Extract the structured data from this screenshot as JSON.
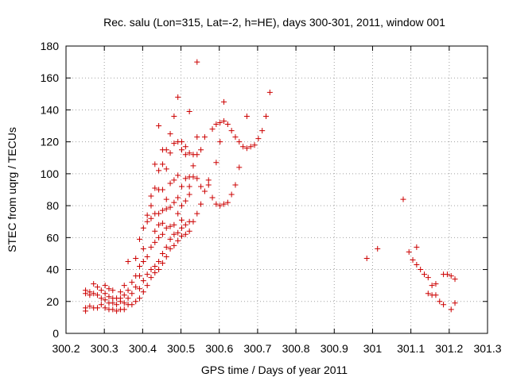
{
  "chart_data": {
    "type": "scatter",
    "title": "Rec. salu (Lon=315, Lat=-2, h=HE), days 300-301, 2011, window 001",
    "xlabel": "GPS time / Days of year 2011",
    "ylabel": "STEC from uqrg / TECUs",
    "xlim": [
      300.2,
      301.3
    ],
    "ylim": [
      0,
      180
    ],
    "xticks": [
      "300.2",
      "300.3",
      "300.4",
      "300.5",
      "300.6",
      "300.7",
      "300.8",
      "300.9",
      "301",
      "301.1",
      "301.2",
      "301.3"
    ],
    "yticks": [
      "0",
      "20",
      "40",
      "60",
      "80",
      "100",
      "120",
      "140",
      "160",
      "180"
    ],
    "grid": true,
    "marker": "+",
    "color": "#cc0000",
    "points": [
      [
        300.251,
        14
      ],
      [
        300.251,
        16
      ],
      [
        300.251,
        25
      ],
      [
        300.251,
        27
      ],
      [
        300.262,
        17
      ],
      [
        300.262,
        24
      ],
      [
        300.262,
        26
      ],
      [
        300.272,
        16
      ],
      [
        300.272,
        25
      ],
      [
        300.272,
        31
      ],
      [
        300.282,
        16
      ],
      [
        300.282,
        24
      ],
      [
        300.282,
        29
      ],
      [
        300.292,
        18
      ],
      [
        300.292,
        22
      ],
      [
        300.292,
        27
      ],
      [
        300.302,
        16
      ],
      [
        300.302,
        21
      ],
      [
        300.302,
        25
      ],
      [
        300.302,
        30
      ],
      [
        300.312,
        15
      ],
      [
        300.312,
        19
      ],
      [
        300.312,
        23
      ],
      [
        300.312,
        28
      ],
      [
        300.322,
        15
      ],
      [
        300.322,
        19
      ],
      [
        300.322,
        22
      ],
      [
        300.322,
        27
      ],
      [
        300.332,
        14
      ],
      [
        300.332,
        18
      ],
      [
        300.332,
        22
      ],
      [
        300.342,
        15
      ],
      [
        300.342,
        20
      ],
      [
        300.342,
        22
      ],
      [
        300.342,
        26
      ],
      [
        300.352,
        15
      ],
      [
        300.352,
        19
      ],
      [
        300.352,
        24
      ],
      [
        300.352,
        30
      ],
      [
        300.362,
        18
      ],
      [
        300.362,
        22
      ],
      [
        300.362,
        27
      ],
      [
        300.362,
        45
      ],
      [
        300.372,
        18
      ],
      [
        300.372,
        25
      ],
      [
        300.372,
        32
      ],
      [
        300.382,
        20
      ],
      [
        300.382,
        29
      ],
      [
        300.382,
        36
      ],
      [
        300.382,
        47
      ],
      [
        300.392,
        22
      ],
      [
        300.392,
        28
      ],
      [
        300.392,
        36
      ],
      [
        300.392,
        42
      ],
      [
        300.392,
        59
      ],
      [
        300.402,
        26
      ],
      [
        300.402,
        33
      ],
      [
        300.402,
        45
      ],
      [
        300.402,
        53
      ],
      [
        300.402,
        66
      ],
      [
        300.412,
        30
      ],
      [
        300.412,
        37
      ],
      [
        300.412,
        48
      ],
      [
        300.412,
        70
      ],
      [
        300.412,
        74
      ],
      [
        300.422,
        35
      ],
      [
        300.422,
        40
      ],
      [
        300.422,
        54
      ],
      [
        300.422,
        72
      ],
      [
        300.422,
        80
      ],
      [
        300.422,
        86
      ],
      [
        300.432,
        38
      ],
      [
        300.432,
        42
      ],
      [
        300.432,
        57
      ],
      [
        300.432,
        64
      ],
      [
        300.432,
        75
      ],
      [
        300.432,
        91
      ],
      [
        300.432,
        106
      ],
      [
        300.442,
        40
      ],
      [
        300.442,
        45
      ],
      [
        300.442,
        60
      ],
      [
        300.442,
        68
      ],
      [
        300.442,
        75
      ],
      [
        300.442,
        90
      ],
      [
        300.442,
        102
      ],
      [
        300.442,
        130
      ],
      [
        300.452,
        44
      ],
      [
        300.452,
        50
      ],
      [
        300.452,
        62
      ],
      [
        300.452,
        69
      ],
      [
        300.452,
        77
      ],
      [
        300.452,
        90
      ],
      [
        300.452,
        106
      ],
      [
        300.452,
        115
      ],
      [
        300.462,
        48
      ],
      [
        300.462,
        54
      ],
      [
        300.462,
        66
      ],
      [
        300.462,
        78
      ],
      [
        300.462,
        84
      ],
      [
        300.462,
        103
      ],
      [
        300.462,
        115
      ],
      [
        300.472,
        53
      ],
      [
        300.472,
        59
      ],
      [
        300.472,
        67
      ],
      [
        300.472,
        79
      ],
      [
        300.472,
        94
      ],
      [
        300.472,
        113
      ],
      [
        300.472,
        125
      ],
      [
        300.482,
        55
      ],
      [
        300.482,
        62
      ],
      [
        300.482,
        68
      ],
      [
        300.482,
        82
      ],
      [
        300.482,
        96
      ],
      [
        300.482,
        119
      ],
      [
        300.482,
        136
      ],
      [
        300.492,
        58
      ],
      [
        300.492,
        63
      ],
      [
        300.492,
        75
      ],
      [
        300.492,
        85
      ],
      [
        300.492,
        99
      ],
      [
        300.492,
        120
      ],
      [
        300.492,
        148
      ],
      [
        300.502,
        61
      ],
      [
        300.502,
        66
      ],
      [
        300.502,
        71
      ],
      [
        300.502,
        80
      ],
      [
        300.502,
        92
      ],
      [
        300.502,
        115
      ],
      [
        300.502,
        120
      ],
      [
        300.512,
        62
      ],
      [
        300.512,
        68
      ],
      [
        300.512,
        83
      ],
      [
        300.512,
        97
      ],
      [
        300.512,
        112
      ],
      [
        300.512,
        117
      ],
      [
        300.522,
        64
      ],
      [
        300.522,
        70
      ],
      [
        300.522,
        87
      ],
      [
        300.522,
        92
      ],
      [
        300.522,
        98
      ],
      [
        300.522,
        113
      ],
      [
        300.522,
        139
      ],
      [
        300.532,
        70
      ],
      [
        300.532,
        98
      ],
      [
        300.532,
        105
      ],
      [
        300.532,
        112
      ],
      [
        300.542,
        75
      ],
      [
        300.542,
        97
      ],
      [
        300.542,
        112
      ],
      [
        300.542,
        123
      ],
      [
        300.542,
        170
      ],
      [
        300.552,
        81
      ],
      [
        300.552,
        92
      ],
      [
        300.552,
        115
      ],
      [
        300.562,
        89
      ],
      [
        300.562,
        123
      ],
      [
        300.572,
        93
      ],
      [
        300.572,
        96
      ],
      [
        300.582,
        85
      ],
      [
        300.582,
        128
      ],
      [
        300.592,
        81
      ],
      [
        300.592,
        107
      ],
      [
        300.592,
        131
      ],
      [
        300.602,
        80
      ],
      [
        300.602,
        120
      ],
      [
        300.602,
        132
      ],
      [
        300.612,
        81
      ],
      [
        300.612,
        133
      ],
      [
        300.612,
        145
      ],
      [
        300.622,
        82
      ],
      [
        300.622,
        131
      ],
      [
        300.632,
        87
      ],
      [
        300.632,
        127
      ],
      [
        300.642,
        93
      ],
      [
        300.642,
        123
      ],
      [
        300.652,
        104
      ],
      [
        300.652,
        120
      ],
      [
        300.662,
        117
      ],
      [
        300.672,
        116
      ],
      [
        300.672,
        136
      ],
      [
        300.682,
        117
      ],
      [
        300.692,
        118
      ],
      [
        300.702,
        122
      ],
      [
        300.712,
        127
      ],
      [
        300.722,
        136
      ],
      [
        300.732,
        151
      ],
      [
        300.985,
        47
      ],
      [
        301.013,
        53
      ],
      [
        301.08,
        84
      ],
      [
        301.095,
        51
      ],
      [
        301.105,
        46
      ],
      [
        301.115,
        54
      ],
      [
        301.115,
        43
      ],
      [
        301.125,
        40
      ],
      [
        301.135,
        37
      ],
      [
        301.145,
        25
      ],
      [
        301.145,
        35
      ],
      [
        301.155,
        24
      ],
      [
        301.155,
        30
      ],
      [
        301.165,
        24
      ],
      [
        301.165,
        31
      ],
      [
        301.175,
        20
      ],
      [
        301.185,
        37
      ],
      [
        301.185,
        18
      ],
      [
        301.195,
        37
      ],
      [
        301.205,
        36
      ],
      [
        301.205,
        15
      ],
      [
        301.215,
        34
      ],
      [
        301.215,
        19
      ]
    ]
  }
}
